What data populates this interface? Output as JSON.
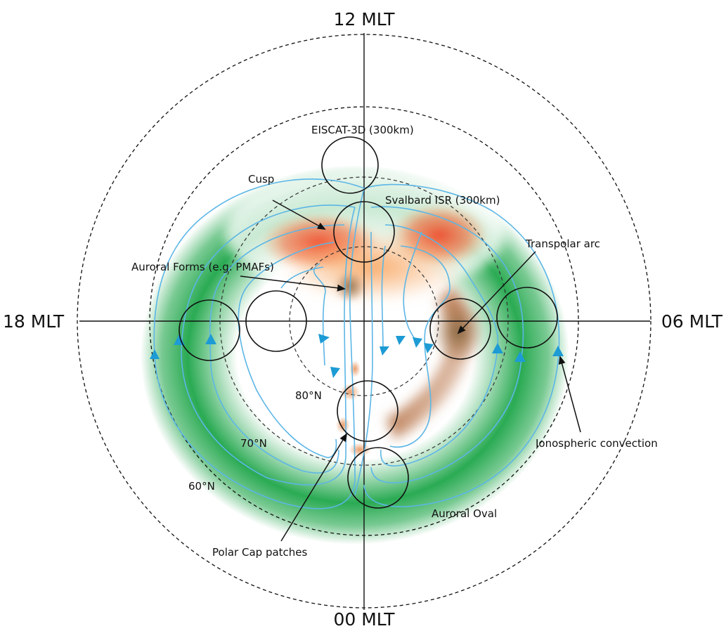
{
  "mlt_labels": {
    "noon": "12 MLT",
    "midnight": "00 MLT",
    "dusk": "18 MLT",
    "dawn": "06 MLT"
  },
  "latitude_labels": {
    "lat80": "80°N",
    "lat70": "70°N",
    "lat60": "60°N"
  },
  "annotations": {
    "eiscat": "EISCAT-3D (300km)",
    "svalbard": "Svalbard ISR (300km)",
    "cusp": "Cusp",
    "transpolar_arc": "Transpolar arc",
    "auroral_forms": "Auroral Forms (e.g. PMAFs)",
    "ionospheric_convection": "Ionospheric convection",
    "auroral_oval": "Auroral Oval",
    "polar_cap_patches": "Polar Cap patches"
  },
  "colors": {
    "auroral_oval_green": "#1fa64a",
    "cusp_red": "#ef4a2a",
    "cusp_orange": "#f7a25a",
    "arc_brown": "#a36a3c",
    "convection_line": "#5cb6e6",
    "convection_arrow": "#1d9bd4"
  }
}
